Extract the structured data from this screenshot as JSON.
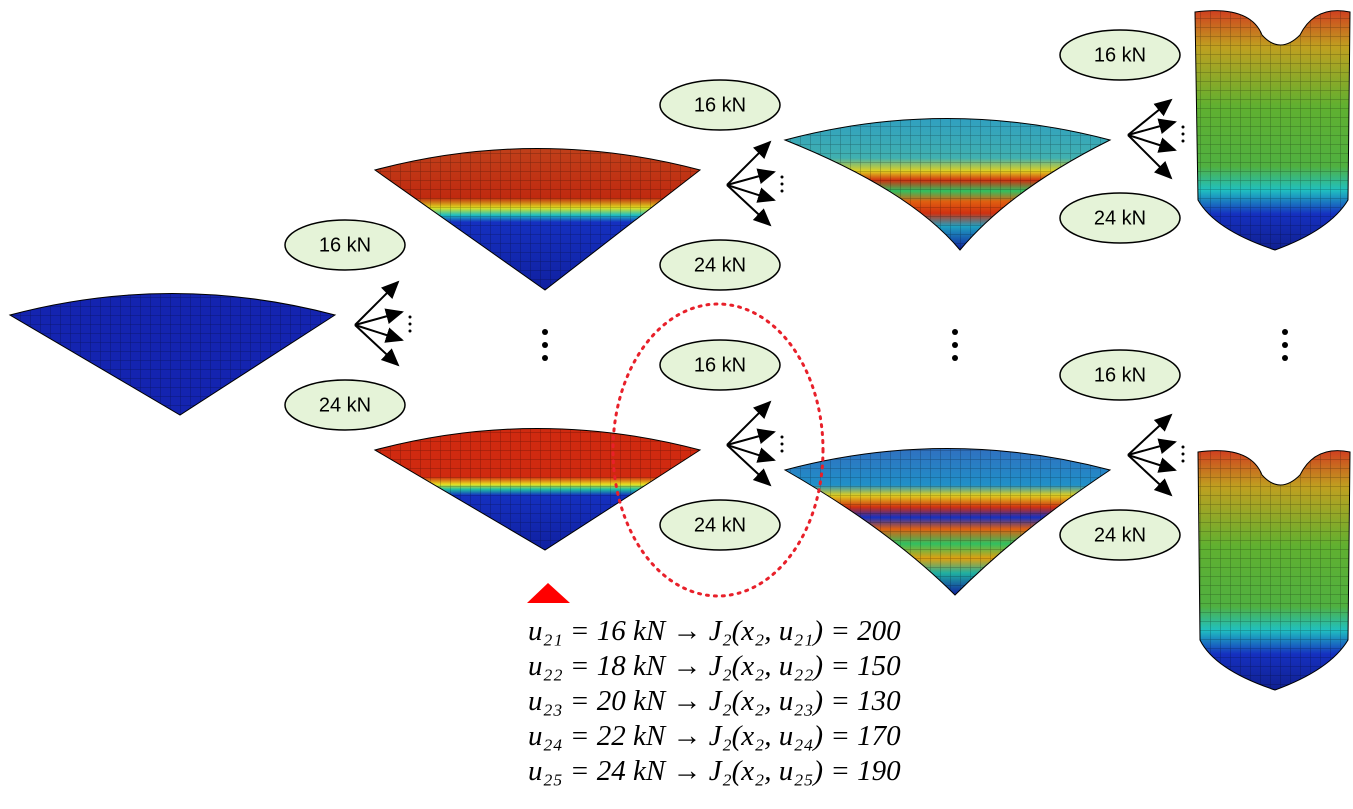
{
  "nodes": [
    {
      "label": "16 kN"
    },
    {
      "label": "24 kN"
    },
    {
      "label": "16 kN"
    },
    {
      "label": "24 kN"
    },
    {
      "label": "16 kN"
    },
    {
      "label": "24 kN"
    },
    {
      "label": "16 kN"
    },
    {
      "label": "24 kN"
    },
    {
      "label": "16 kN"
    },
    {
      "label": "24 kN"
    }
  ],
  "equations": [
    {
      "text": "u₂₁ = 16 kN → J₂(x₂, u₂₁) = 200"
    },
    {
      "text": "u₂₂ = 18 kN → J₂(x₂, u₂₂) = 150"
    },
    {
      "text": "u₂₃ = 20 kN → J₂(x₂, u₂₃) = 130"
    },
    {
      "text": "u₂₄ = 22 kN → J₂(x₂, u₂₄) = 170"
    },
    {
      "text": "u₂₅ = 24 kN → J₂(x₂, u₂₅) = 190"
    }
  ],
  "highlighted": 2
}
